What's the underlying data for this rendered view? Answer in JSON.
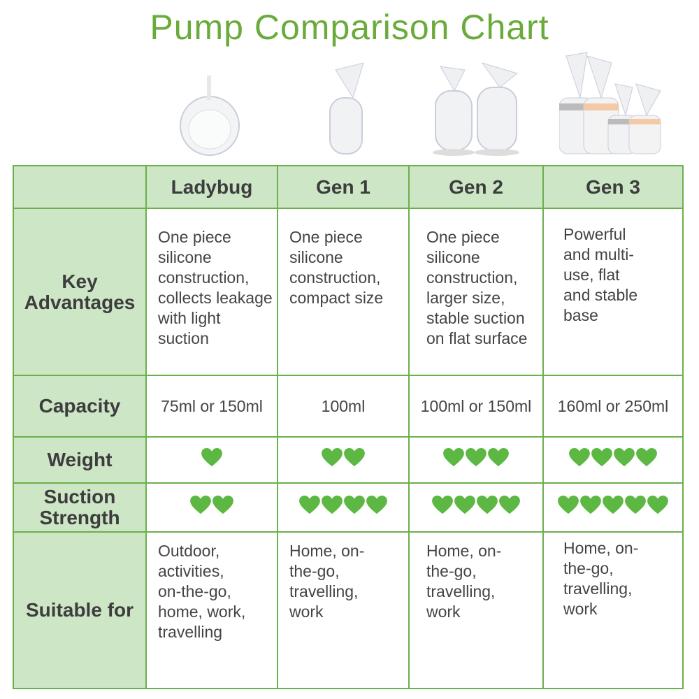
{
  "title": "Pump Comparison Chart",
  "colors": {
    "accent": "#6aab3c",
    "header_bg": "#cce6c6",
    "border": "#6ab04c",
    "heart": "#5cb843"
  },
  "columns": [
    "Ladybug",
    "Gen 1",
    "Gen 2",
    "Gen 3"
  ],
  "rows": [
    {
      "label": "Key Advantages",
      "values": [
        "One piece silicone construction, collects leakage with light suction",
        "One piece silicone construction, compact size",
        "One piece silicone construction, larger size, stable suction on flat surface",
        "Powerful and multi-use, flat and stable base"
      ]
    },
    {
      "label": "Capacity",
      "values": [
        "75ml or 150ml",
        "100ml",
        "100ml or 150ml",
        "160ml or 250ml"
      ]
    },
    {
      "label": "Weight",
      "hearts": [
        1,
        2,
        3,
        4
      ]
    },
    {
      "label": "Suction Strength",
      "hearts": [
        2,
        4,
        4,
        5
      ]
    },
    {
      "label": "Suitable for",
      "values": [
        "Outdoor, activities, on-the-go, home, work, travelling",
        "Home, on-the-go, travelling, work",
        "Home, on-the-go, travelling, work",
        "Home, on-the-go, travelling, work"
      ]
    }
  ]
}
